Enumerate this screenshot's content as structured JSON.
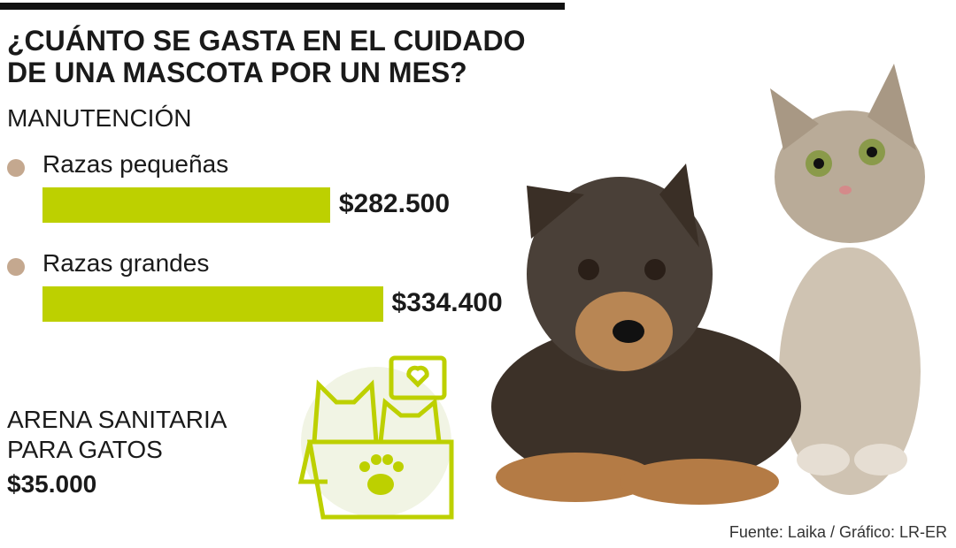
{
  "chart_data": {
    "type": "bar",
    "orientation": "horizontal",
    "title": "¿CUÁNTO SE GASTA EN EL CUIDADO DE UNA MASCOTA POR UN MES?",
    "subtitle": "MANUTENCIÓN",
    "categories": [
      "Razas pequeñas",
      "Razas grandes"
    ],
    "values": [
      282500,
      334400
    ],
    "value_labels": [
      "$282.500",
      "$334.400"
    ],
    "color": "#bdd000",
    "bullet_color": "#c4a88f",
    "annotation": {
      "label": "ARENA SANITARIA PARA GATOS",
      "value_label": "$35.000"
    },
    "source": "Fuente: Laika / Gráfico: LR-ER"
  }
}
